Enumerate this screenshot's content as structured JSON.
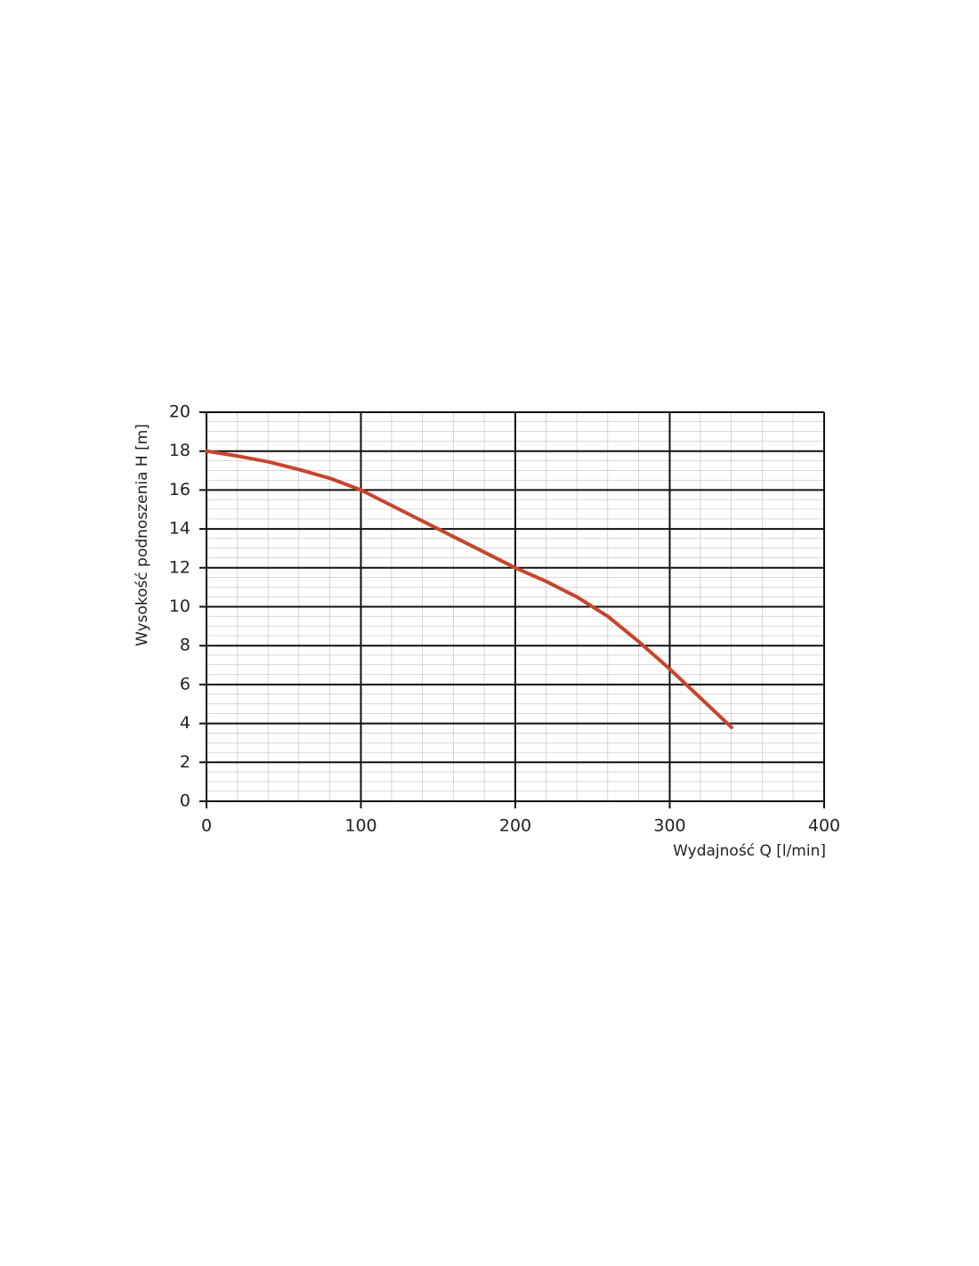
{
  "chart_data": {
    "type": "line",
    "x_label": "Wydajność Q [l/min]",
    "y_label": "Wysokość podnoszenia H [m]",
    "x": [
      0,
      20,
      40,
      60,
      80,
      100,
      120,
      140,
      160,
      180,
      200,
      220,
      240,
      260,
      280,
      300,
      320,
      340
    ],
    "series": [
      {
        "color": "#c8442c",
        "values": [
          18,
          17.75,
          17.45,
          17.05,
          16.6,
          16,
          15.2,
          14.4,
          13.6,
          12.8,
          12,
          11.3,
          10.5,
          9.5,
          8.2,
          6.8,
          5.3,
          3.8
        ]
      }
    ],
    "xlim": [
      0,
      400
    ],
    "xticks": [
      0,
      100,
      200,
      300,
      400
    ],
    "ylim": [
      0,
      20
    ],
    "yticks": [
      0,
      2,
      4,
      6,
      8,
      10,
      12,
      14,
      16,
      18,
      20
    ],
    "grid": true
  }
}
